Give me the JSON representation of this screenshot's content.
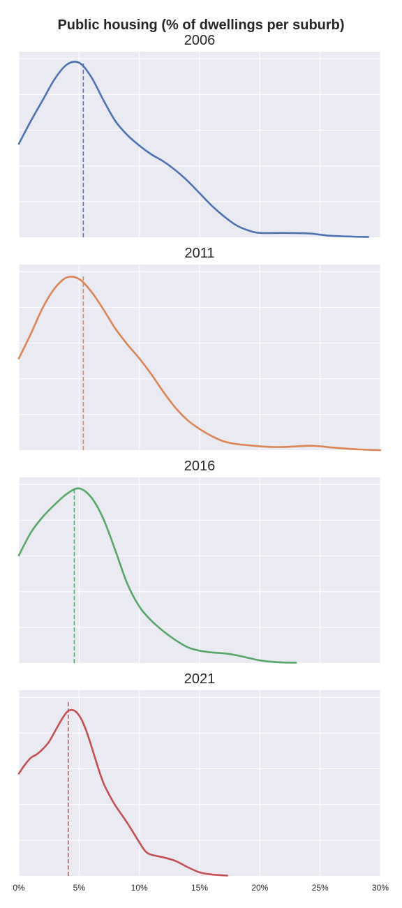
{
  "chart_data": {
    "type": "line",
    "title": "Public housing (% of dwellings per suburb)",
    "xlabel": "",
    "ylabel": "",
    "xlim": [
      0,
      30
    ],
    "x_ticks": [
      0,
      5,
      10,
      15,
      20,
      25,
      30
    ],
    "x_tick_labels": [
      "0%",
      "5%",
      "10%",
      "15%",
      "20%",
      "25%",
      "30%"
    ],
    "grid": true,
    "y_axis_labels_shown": false,
    "panels": [
      {
        "title": "2006",
        "color": "#4c72b0",
        "median": 5.35,
        "curve": [
          [
            0,
            0.53
          ],
          [
            1,
            0.66
          ],
          [
            2,
            0.78
          ],
          [
            3,
            0.9
          ],
          [
            4,
            0.98
          ],
          [
            5,
            0.99
          ],
          [
            6,
            0.91
          ],
          [
            7,
            0.78
          ],
          [
            8,
            0.66
          ],
          [
            9,
            0.58
          ],
          [
            10,
            0.52
          ],
          [
            11,
            0.47
          ],
          [
            12,
            0.43
          ],
          [
            13,
            0.38
          ],
          [
            14,
            0.32
          ],
          [
            15,
            0.25
          ],
          [
            16,
            0.18
          ],
          [
            17,
            0.12
          ],
          [
            18,
            0.07
          ],
          [
            19,
            0.04
          ],
          [
            20,
            0.025
          ],
          [
            22,
            0.025
          ],
          [
            24,
            0.022
          ],
          [
            25,
            0.015
          ],
          [
            26,
            0.008
          ],
          [
            28,
            0.003
          ],
          [
            29,
            0.002
          ]
        ]
      },
      {
        "title": "2011",
        "color": "#dd8452",
        "median": 5.35,
        "curve": [
          [
            0,
            0.52
          ],
          [
            1,
            0.66
          ],
          [
            2,
            0.81
          ],
          [
            3,
            0.92
          ],
          [
            4,
            0.98
          ],
          [
            5,
            0.97
          ],
          [
            6,
            0.9
          ],
          [
            7,
            0.8
          ],
          [
            8,
            0.69
          ],
          [
            9,
            0.6
          ],
          [
            10,
            0.52
          ],
          [
            11,
            0.43
          ],
          [
            12,
            0.33
          ],
          [
            13,
            0.24
          ],
          [
            14,
            0.17
          ],
          [
            15,
            0.12
          ],
          [
            16,
            0.08
          ],
          [
            17,
            0.05
          ],
          [
            18,
            0.035
          ],
          [
            19,
            0.028
          ],
          [
            20,
            0.022
          ],
          [
            21,
            0.018
          ],
          [
            22,
            0.018
          ],
          [
            24,
            0.025
          ],
          [
            25,
            0.022
          ],
          [
            26,
            0.015
          ],
          [
            28,
            0.005
          ],
          [
            30,
            0.0
          ]
        ]
      },
      {
        "title": "2016",
        "color": "#55a868",
        "median": 4.6,
        "curve": [
          [
            0,
            0.61
          ],
          [
            1,
            0.74
          ],
          [
            2,
            0.83
          ],
          [
            3,
            0.9
          ],
          [
            4,
            0.96
          ],
          [
            5,
            0.99
          ],
          [
            6,
            0.94
          ],
          [
            7,
            0.82
          ],
          [
            8,
            0.64
          ],
          [
            9,
            0.45
          ],
          [
            10,
            0.32
          ],
          [
            11,
            0.24
          ],
          [
            12,
            0.18
          ],
          [
            13,
            0.13
          ],
          [
            14,
            0.09
          ],
          [
            15,
            0.07
          ],
          [
            16,
            0.06
          ],
          [
            17,
            0.055
          ],
          [
            18,
            0.045
          ],
          [
            19,
            0.03
          ],
          [
            20,
            0.015
          ],
          [
            21,
            0.007
          ],
          [
            22,
            0.003
          ],
          [
            23,
            0.002
          ]
        ]
      },
      {
        "title": "2021",
        "color": "#c44e52",
        "median": 4.1,
        "curve": [
          [
            0,
            0.58
          ],
          [
            0.5,
            0.63
          ],
          [
            1,
            0.67
          ],
          [
            1.5,
            0.69
          ],
          [
            2,
            0.72
          ],
          [
            2.5,
            0.76
          ],
          [
            3,
            0.82
          ],
          [
            3.5,
            0.88
          ],
          [
            4,
            0.93
          ],
          [
            4.5,
            0.94
          ],
          [
            5,
            0.91
          ],
          [
            5.5,
            0.84
          ],
          [
            6,
            0.74
          ],
          [
            6.5,
            0.63
          ],
          [
            7,
            0.53
          ],
          [
            7.5,
            0.46
          ],
          [
            8,
            0.4
          ],
          [
            9,
            0.3
          ],
          [
            10,
            0.19
          ],
          [
            10.5,
            0.14
          ],
          [
            11,
            0.12
          ],
          [
            12,
            0.105
          ],
          [
            13,
            0.085
          ],
          [
            14,
            0.05
          ],
          [
            15,
            0.02
          ],
          [
            16,
            0.008
          ],
          [
            17,
            0.003
          ],
          [
            17.3,
            0.002
          ]
        ]
      }
    ]
  }
}
